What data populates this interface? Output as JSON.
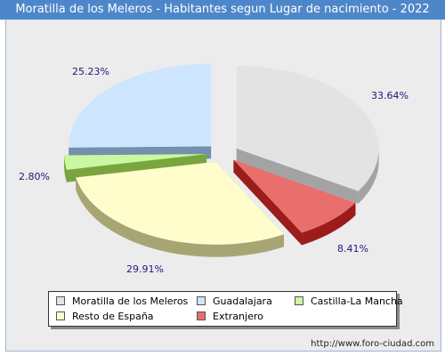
{
  "title": "Moratilla de los Meleros - Habitantes segun Lugar de nacimiento - 2022",
  "source": "http://www.foro-ciudad.com",
  "chart_data": {
    "type": "pie",
    "title": "Moratilla de los Meleros - Habitantes segun Lugar de nacimiento - 2022",
    "slices": [
      {
        "name": "Moratilla de los Meleros",
        "value": 33.64,
        "label": "33.64%",
        "color": "#e3e3e3",
        "side": "#a3a3a3"
      },
      {
        "name": "Extranjero",
        "value": 8.41,
        "label": "8.41%",
        "color": "#e96f6c",
        "side": "#9b1c1a"
      },
      {
        "name": "Resto de España",
        "value": 29.91,
        "label": "29.91%",
        "color": "#fffdcc",
        "side": "#a7a573"
      },
      {
        "name": "Castilla-La Mancha",
        "value": 2.8,
        "label": "2.80%",
        "color": "#caf7a1",
        "side": "#79a53f"
      },
      {
        "name": "Guadalajara",
        "value": 25.23,
        "label": "25.23%",
        "color": "#cde5ff",
        "side": "#7390ad"
      }
    ],
    "legend": [
      {
        "name": "Moratilla de los Meleros",
        "color": "#e3e3e3"
      },
      {
        "name": "Guadalajara",
        "color": "#cde5ff"
      },
      {
        "name": "Castilla-La Mancha",
        "color": "#caf7a1"
      },
      {
        "name": "Resto de España",
        "color": "#fffdcc"
      },
      {
        "name": "Extranjero",
        "color": "#e96f6c"
      }
    ],
    "legend_position": "bottom"
  }
}
